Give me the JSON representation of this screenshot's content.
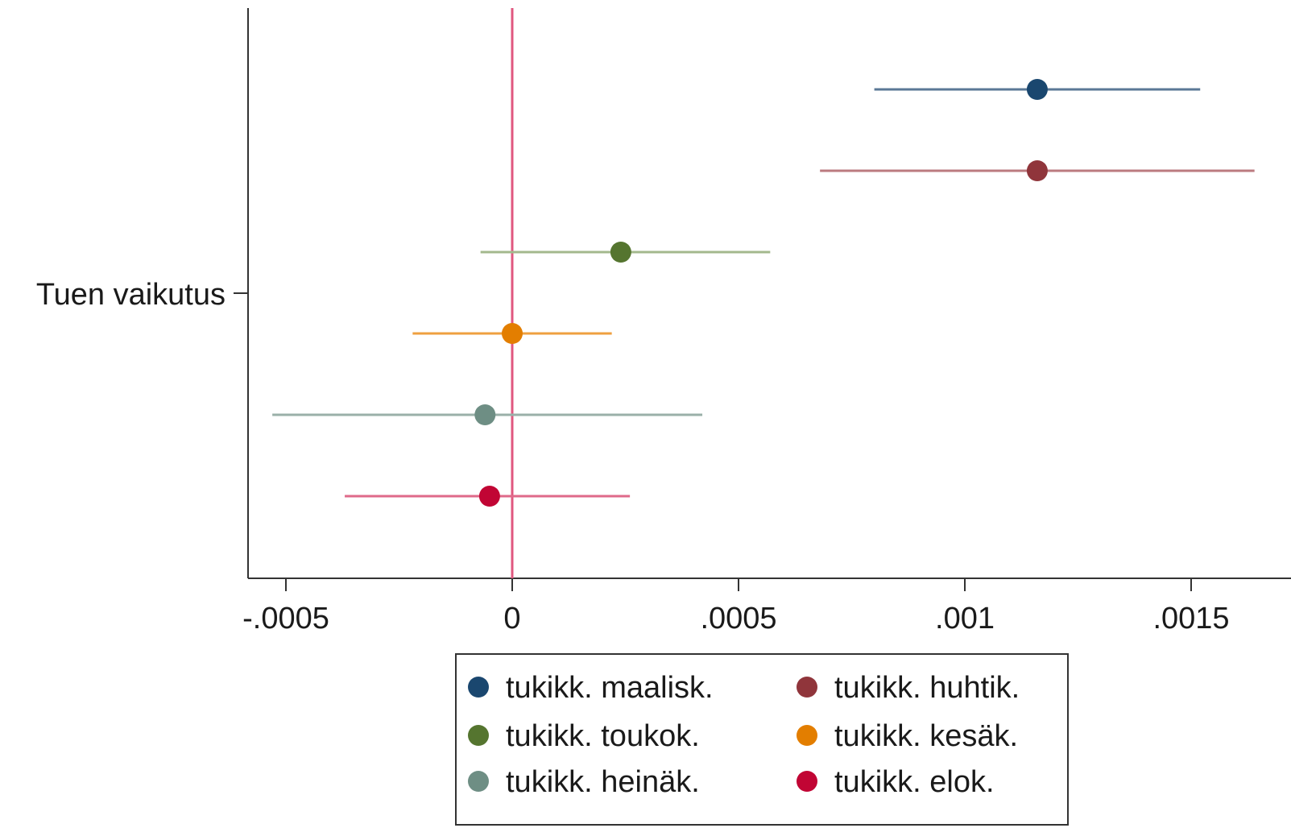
{
  "chart_data": {
    "type": "scatter",
    "subtype": "coefficient-plot",
    "title": "",
    "xlabel": "",
    "ylabel": "",
    "y_category": "Tuen vaikutus",
    "xlim": [
      -0.00059,
      0.00165
    ],
    "x_ticks": [
      {
        "value": -0.0005,
        "label": "-.0005"
      },
      {
        "value": 0,
        "label": "0"
      },
      {
        "value": 0.0005,
        "label": ".0005"
      },
      {
        "value": 0.001,
        "label": ".001"
      },
      {
        "value": 0.0015,
        "label": ".0015"
      }
    ],
    "reference_line": {
      "x": 0,
      "color": "#e0577f"
    },
    "grid": false,
    "legend_position": "bottom",
    "series": [
      {
        "name": "tukikk. maalisk.",
        "estimate": 0.00116,
        "ci_low": 0.0008,
        "ci_high": 0.00152,
        "color": "#1a476f",
        "ci_color": "#5a7896"
      },
      {
        "name": "tukikk. huhtik.",
        "estimate": 0.00116,
        "ci_low": 0.00068,
        "ci_high": 0.00164,
        "color": "#90353b",
        "ci_color": "#bb7a7f"
      },
      {
        "name": "tukikk. toukok.",
        "estimate": 0.00024,
        "ci_low": -7e-05,
        "ci_high": 0.00057,
        "color": "#55752f",
        "ci_color": "#a3b98d"
      },
      {
        "name": "tukikk. kesäk.",
        "estimate": 0.0,
        "ci_low": -0.00022,
        "ci_high": 0.00022,
        "color": "#e37e00",
        "ci_color": "#efa040"
      },
      {
        "name": "tukikk. heinäk.",
        "estimate": -6e-05,
        "ci_low": -0.00053,
        "ci_high": 0.00042,
        "color": "#6e8e84",
        "ci_color": "#9ab0a9"
      },
      {
        "name": "tukikk. elok.",
        "estimate": -5e-05,
        "ci_low": -0.00037,
        "ci_high": 0.00026,
        "color": "#c10534",
        "ci_color": "#df6a8a"
      }
    ]
  }
}
